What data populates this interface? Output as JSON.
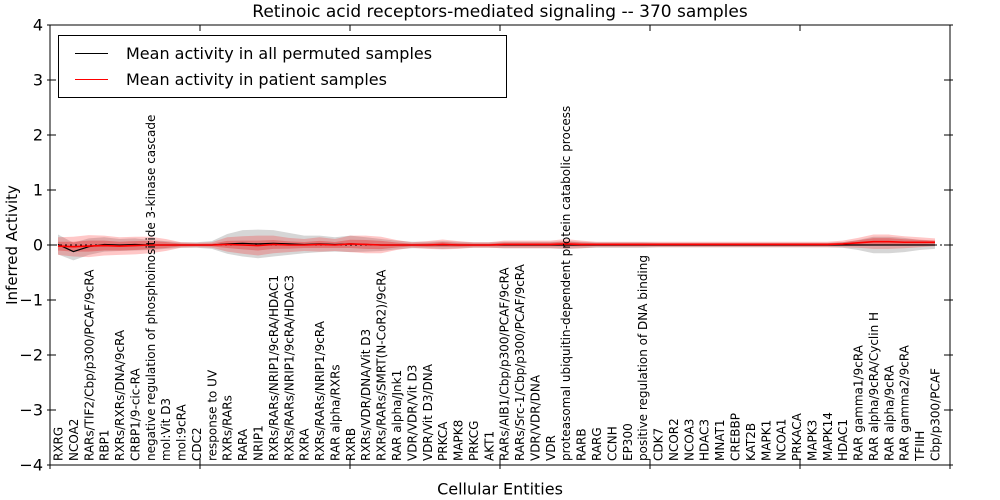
{
  "figure": {
    "title": "Retinoic acid receptors-mediated signaling -- 370 samples"
  },
  "legend": {
    "items": [
      {
        "label": "Mean activity in all permuted samples",
        "color": "#000000"
      },
      {
        "label": "Mean activity in patient samples",
        "color": "#ff0000"
      }
    ],
    "position": "upper left"
  },
  "chart_data": {
    "type": "line",
    "title": "Retinoic acid receptors-mediated signaling -- 370 samples",
    "xlabel": "Cellular Entities",
    "ylabel": "Inferred Activity",
    "ylim": [
      -4,
      4
    ],
    "yticks": [
      -4,
      -3,
      -2,
      -1,
      0,
      1,
      2,
      3,
      4
    ],
    "grid": false,
    "zero_reference_line": true,
    "legend_position": "upper left",
    "colors": {
      "permuted_line": "#000000",
      "patient_line": "#ff0000",
      "patient_band": "rgba(255,0,0,0.22)",
      "patient_band_inner": "rgba(225,30,30,0.34)",
      "permuted_band": "rgba(120,120,120,0.30)"
    },
    "categories": [
      "RXRG",
      "NCOA2",
      "RARs/TIF2/Cbp/p300/PCAF/9cRA",
      "RBP1",
      "RXRs/RXRs/DNA/9cRA",
      "CRBP1/9-cic-RA",
      "negative regulation of phosphoinositide 3-kinase cascade",
      "mol:Vit D3",
      "mol:9cRA",
      "CDC2",
      "response to UV",
      "RXRs/RARs",
      "RARA",
      "NRIP1",
      "RXRs/RARs/NRIP1/9cRA/HDAC1",
      "RXRs/RARs/NRIP1/9cRA/HDAC3",
      "RXRA",
      "RXRs/RARs/NRIP1/9cRA",
      "RAR alpha/RXRs",
      "RXRB",
      "RXRs/VDR/DNA/Vit D3",
      "RXRs/RARs/SMRT(N-CoR2)/9cRA",
      "RAR alpha/Jnk1",
      "VDR/VDR/Vit D3",
      "VDR/Vit D3/DNA",
      "PRKCA",
      "MAPK8",
      "PRKCG",
      "AKT1",
      "RARs/AIB1/Cbp/p300/PCAF/9cRA",
      "RARs/Src-1/Cbp/p300/PCAF/9cRA",
      "VDR/VDR/DNA",
      "VDR",
      "proteasomal ubiquitin-dependent protein catabolic process",
      "RARB",
      "RARG",
      "CCNH",
      "EP300",
      "positive regulation of DNA binding",
      "CDK7",
      "NCOR2",
      "NCOA3",
      "HDAC3",
      "MNAT1",
      "CREBBP",
      "KAT2B",
      "MAPK1",
      "NCOA1",
      "PRKACA",
      "MAPK3",
      "MAPK14",
      "HDAC1",
      "RAR gamma1/9cRA",
      "RAR alpha/9cRA/Cyclin H",
      "RAR alpha/9cRA",
      "RAR gamma2/9cRA",
      "TFIIH",
      "Cbp/p300/PCAF"
    ],
    "series": [
      {
        "name": "Mean activity in all permuted samples",
        "color": "#000000",
        "mean": [
          0.01,
          -0.12,
          -0.03,
          0.01,
          0,
          0.01,
          0,
          0,
          0,
          0,
          0,
          0.02,
          0.03,
          0.02,
          0.03,
          0.02,
          0.01,
          0.02,
          0.01,
          0.02,
          0.01,
          0,
          0,
          0,
          0,
          0,
          0,
          0,
          0,
          0,
          0,
          0,
          0,
          0,
          0,
          0,
          0,
          0,
          0,
          0,
          0,
          0,
          0,
          0,
          0,
          0,
          0,
          0,
          0,
          0,
          0,
          0,
          0,
          0,
          0,
          0,
          0,
          0
        ],
        "std": [
          0.18,
          0.16,
          0.15,
          0.13,
          0.11,
          0.11,
          0.09,
          0.07,
          0.05,
          0.05,
          0.07,
          0.18,
          0.24,
          0.26,
          0.24,
          0.2,
          0.16,
          0.15,
          0.13,
          0.15,
          0.13,
          0.11,
          0.08,
          0.06,
          0.06,
          0.07,
          0.06,
          0.05,
          0.05,
          0.06,
          0.06,
          0.06,
          0.06,
          0.07,
          0.06,
          0.05,
          0.05,
          0.05,
          0.05,
          0.04,
          0.04,
          0.04,
          0.04,
          0.04,
          0.04,
          0.04,
          0.04,
          0.04,
          0.04,
          0.04,
          0.04,
          0.05,
          0.09,
          0.15,
          0.15,
          0.13,
          0.09,
          0.07
        ]
      },
      {
        "name": "Mean activity in patient samples",
        "color": "#ff0000",
        "mean": [
          -0.02,
          -0.03,
          -0.02,
          -0.01,
          -0.02,
          -0.01,
          0,
          0,
          0,
          0,
          0,
          0.01,
          0,
          -0.01,
          0.01,
          0,
          0,
          0.01,
          0,
          0.02,
          0.01,
          0,
          0,
          0,
          0,
          0.01,
          0,
          0,
          0,
          0.01,
          0.01,
          0.01,
          0.01,
          0.02,
          0.01,
          0.01,
          0.01,
          0.01,
          0.01,
          0.01,
          0.01,
          0.01,
          0.01,
          0.01,
          0.01,
          0.01,
          0.01,
          0.01,
          0.01,
          0.01,
          0.01,
          0.02,
          0.04,
          0.06,
          0.06,
          0.05,
          0.05,
          0.05
        ],
        "std": [
          0.16,
          0.18,
          0.2,
          0.18,
          0.16,
          0.16,
          0.15,
          0.11,
          0.05,
          0.04,
          0.05,
          0.13,
          0.16,
          0.18,
          0.16,
          0.13,
          0.11,
          0.13,
          0.11,
          0.15,
          0.16,
          0.15,
          0.09,
          0.05,
          0.07,
          0.09,
          0.07,
          0.05,
          0.05,
          0.07,
          0.07,
          0.07,
          0.07,
          0.09,
          0.07,
          0.05,
          0.05,
          0.05,
          0.05,
          0.05,
          0.05,
          0.05,
          0.05,
          0.05,
          0.05,
          0.05,
          0.05,
          0.05,
          0.05,
          0.05,
          0.05,
          0.06,
          0.09,
          0.13,
          0.13,
          0.11,
          0.09,
          0.07
        ]
      }
    ]
  }
}
